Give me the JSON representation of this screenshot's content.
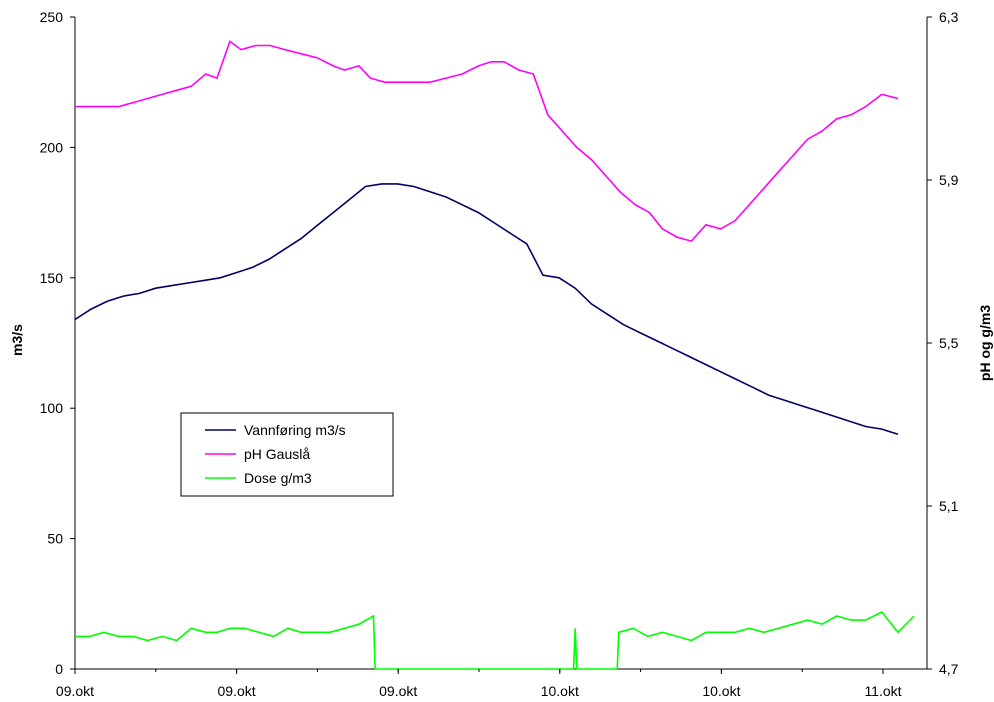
{
  "chart_data": {
    "type": "line",
    "title": "",
    "ylabel_left": "m3/s",
    "ylabel_right": "pH og g/m3",
    "x_tick_labels": [
      "09.okt",
      "09.okt",
      "09.okt",
      "10.okt",
      "10.okt",
      "11.okt"
    ],
    "y_left": {
      "min": 0,
      "max": 250,
      "ticks": [
        0,
        50,
        100,
        150,
        200,
        250
      ]
    },
    "y_right": {
      "min": 4.7,
      "max": 6.3,
      "ticks": [
        "4,7",
        "5,1",
        "5,5",
        "5,9",
        "6,3"
      ],
      "tick_values": [
        4.7,
        5.1,
        5.5,
        5.9,
        6.3
      ]
    },
    "x_range": [
      0,
      52.8
    ],
    "grid": false,
    "legend_position": "middle-left",
    "series": [
      {
        "name": "Vannføring m3/s",
        "axis": "left",
        "color": "#000066",
        "points": [
          [
            0,
            134
          ],
          [
            1,
            138
          ],
          [
            2,
            141
          ],
          [
            3,
            143
          ],
          [
            4,
            144
          ],
          [
            5,
            146
          ],
          [
            6,
            147
          ],
          [
            7,
            148
          ],
          [
            8,
            149
          ],
          [
            9,
            150
          ],
          [
            10,
            152
          ],
          [
            11,
            154
          ],
          [
            12,
            157
          ],
          [
            13,
            161
          ],
          [
            14,
            165
          ],
          [
            15,
            170
          ],
          [
            16,
            175
          ],
          [
            17,
            180
          ],
          [
            18,
            185
          ],
          [
            19,
            186
          ],
          [
            20,
            186
          ],
          [
            21,
            185
          ],
          [
            22,
            183
          ],
          [
            23,
            181
          ],
          [
            24,
            178
          ],
          [
            25,
            175
          ],
          [
            26,
            171
          ],
          [
            27,
            167
          ],
          [
            28,
            163
          ],
          [
            29,
            151
          ],
          [
            30,
            150
          ],
          [
            31,
            146
          ],
          [
            32,
            140
          ],
          [
            33,
            136
          ],
          [
            34,
            132
          ],
          [
            35,
            129
          ],
          [
            36,
            126
          ],
          [
            37,
            123
          ],
          [
            38,
            120
          ],
          [
            39,
            117
          ],
          [
            40,
            114
          ],
          [
            41,
            111
          ],
          [
            42,
            108
          ],
          [
            43,
            105
          ],
          [
            44,
            103
          ],
          [
            45,
            101
          ],
          [
            46,
            99
          ],
          [
            47,
            97
          ],
          [
            48,
            95
          ],
          [
            49,
            93
          ],
          [
            50,
            92
          ],
          [
            51,
            90
          ]
        ]
      },
      {
        "name": "pH Gauslå",
        "axis": "right",
        "color": "#FF00FF",
        "points": [
          [
            0,
            6.08
          ],
          [
            2.7,
            6.08
          ],
          [
            3.6,
            6.09
          ],
          [
            4.5,
            6.1
          ],
          [
            5.4,
            6.11
          ],
          [
            6.3,
            6.12
          ],
          [
            7.2,
            6.13
          ],
          [
            8.1,
            6.16
          ],
          [
            8.8,
            6.15
          ],
          [
            9.6,
            6.24
          ],
          [
            10.3,
            6.22
          ],
          [
            11.2,
            6.23
          ],
          [
            12.1,
            6.23
          ],
          [
            13,
            6.22
          ],
          [
            14,
            6.21
          ],
          [
            15,
            6.2
          ],
          [
            16,
            6.18
          ],
          [
            16.7,
            6.17
          ],
          [
            17.6,
            6.18
          ],
          [
            18.3,
            6.15
          ],
          [
            19.2,
            6.14
          ],
          [
            20.1,
            6.14
          ],
          [
            21,
            6.14
          ],
          [
            22,
            6.14
          ],
          [
            23,
            6.15
          ],
          [
            24,
            6.16
          ],
          [
            25,
            6.18
          ],
          [
            25.8,
            6.19
          ],
          [
            26.6,
            6.19
          ],
          [
            27.5,
            6.17
          ],
          [
            28.4,
            6.16
          ],
          [
            29.3,
            6.06
          ],
          [
            30.2,
            6.02
          ],
          [
            31.1,
            5.98
          ],
          [
            32,
            5.95
          ],
          [
            32.9,
            5.91
          ],
          [
            33.8,
            5.87
          ],
          [
            34.7,
            5.84
          ],
          [
            35.6,
            5.82
          ],
          [
            36.4,
            5.78
          ],
          [
            37.3,
            5.76
          ],
          [
            38.2,
            5.75
          ],
          [
            39.1,
            5.79
          ],
          [
            40,
            5.78
          ],
          [
            40.9,
            5.8
          ],
          [
            41.8,
            5.84
          ],
          [
            42.7,
            5.88
          ],
          [
            43.6,
            5.92
          ],
          [
            44.5,
            5.96
          ],
          [
            45.4,
            6
          ],
          [
            46.3,
            6.02
          ],
          [
            47.2,
            6.05
          ],
          [
            48.1,
            6.06
          ],
          [
            49,
            6.08
          ],
          [
            50,
            6.11
          ],
          [
            51,
            6.1
          ]
        ]
      },
      {
        "name": "Dose g/m3",
        "axis": "right",
        "color": "#00FF00",
        "points": [
          [
            0,
            4.78
          ],
          [
            0.9,
            4.78
          ],
          [
            1.8,
            4.79
          ],
          [
            2.7,
            4.78
          ],
          [
            3.6,
            4.78
          ],
          [
            4.5,
            4.77
          ],
          [
            5.4,
            4.78
          ],
          [
            6.3,
            4.77
          ],
          [
            7.2,
            4.8
          ],
          [
            8.1,
            4.79
          ],
          [
            8.8,
            4.79
          ],
          [
            9.6,
            4.8
          ],
          [
            10.5,
            4.8
          ],
          [
            11.4,
            4.79
          ],
          [
            12.3,
            4.78
          ],
          [
            13.2,
            4.8
          ],
          [
            14,
            4.79
          ],
          [
            14.9,
            4.79
          ],
          [
            15.8,
            4.79
          ],
          [
            16.7,
            4.8
          ],
          [
            17.6,
            4.81
          ],
          [
            18.5,
            4.83
          ],
          [
            18.6,
            4.7
          ],
          [
            30.9,
            4.7
          ],
          [
            31,
            4.8
          ],
          [
            31.1,
            4.7
          ],
          [
            33.6,
            4.7
          ],
          [
            33.7,
            4.79
          ],
          [
            34.6,
            4.8
          ],
          [
            35.5,
            4.78
          ],
          [
            36.4,
            4.79
          ],
          [
            37.3,
            4.78
          ],
          [
            38.2,
            4.77
          ],
          [
            39.1,
            4.79
          ],
          [
            40,
            4.79
          ],
          [
            40.9,
            4.79
          ],
          [
            41.8,
            4.8
          ],
          [
            42.7,
            4.79
          ],
          [
            43.6,
            4.8
          ],
          [
            44.5,
            4.81
          ],
          [
            45.4,
            4.82
          ],
          [
            46.3,
            4.81
          ],
          [
            47.2,
            4.83
          ],
          [
            48.1,
            4.82
          ],
          [
            49,
            4.82
          ],
          [
            50,
            4.84
          ],
          [
            51,
            4.79
          ],
          [
            52,
            4.83
          ]
        ]
      }
    ]
  }
}
